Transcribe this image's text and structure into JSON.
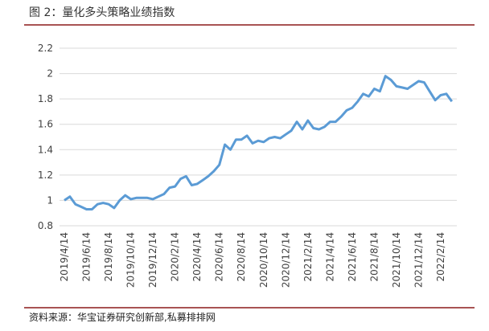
{
  "chart_data": {
    "type": "line",
    "title": "图 2：量化多头策略业绩指数",
    "source": "资料来源：华宝证券研究创新部,私募排排网",
    "categories": [
      "2019/4/14",
      null,
      null,
      null,
      "2019/6/14",
      null,
      null,
      null,
      "2019/8/14",
      null,
      null,
      null,
      "2019/10/14",
      null,
      null,
      null,
      "2019/12/14",
      null,
      null,
      null,
      "2020/2/14",
      null,
      null,
      null,
      "2020/4/14",
      null,
      null,
      null,
      "2020/6/14",
      null,
      null,
      null,
      "2020/8/14",
      null,
      null,
      null,
      "2020/10/14",
      null,
      null,
      null,
      "2020/12/14",
      null,
      null,
      null,
      "2021/2/14",
      null,
      null,
      null,
      "2021/4/14",
      null,
      null,
      null,
      "2021/6/14",
      null,
      null,
      null,
      "2021/8/14",
      null,
      null,
      null,
      "2021/10/14",
      null,
      null,
      null,
      "2021/12/14",
      null,
      null,
      null,
      "2022/2/14",
      null,
      null
    ],
    "series": [
      {
        "color": "#5b9bd5",
        "values": [
          1.0,
          1.03,
          0.97,
          0.95,
          0.93,
          0.93,
          0.97,
          0.98,
          0.97,
          0.94,
          1.0,
          1.04,
          1.01,
          1.02,
          1.02,
          1.02,
          1.01,
          1.03,
          1.05,
          1.1,
          1.11,
          1.17,
          1.19,
          1.12,
          1.13,
          1.16,
          1.19,
          1.23,
          1.28,
          1.44,
          1.4,
          1.48,
          1.48,
          1.51,
          1.45,
          1.47,
          1.46,
          1.49,
          1.5,
          1.49,
          1.52,
          1.55,
          1.62,
          1.56,
          1.63,
          1.57,
          1.56,
          1.58,
          1.62,
          1.62,
          1.66,
          1.71,
          1.73,
          1.78,
          1.84,
          1.82,
          1.88,
          1.86,
          1.98,
          1.95,
          1.9,
          1.89,
          1.88,
          1.91,
          1.94,
          1.93,
          1.86,
          1.79,
          1.83,
          1.84,
          1.78
        ]
      }
    ],
    "ylim": [
      0.8,
      2.2
    ],
    "yticks": [
      {
        "value": 0.8,
        "label": "0.8"
      },
      1,
      1.2,
      1.4,
      1.6,
      1.8,
      2,
      2.2
    ],
    "grid": true
  }
}
